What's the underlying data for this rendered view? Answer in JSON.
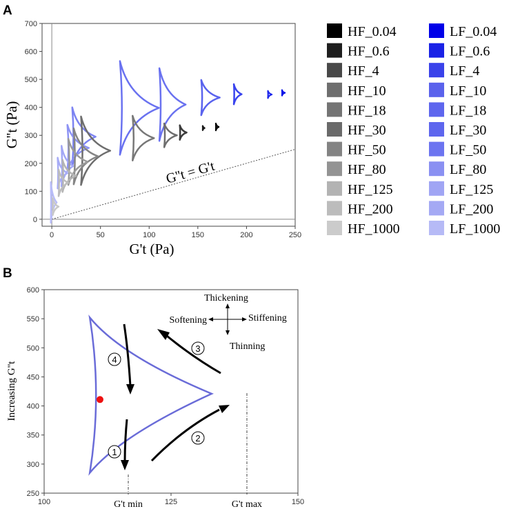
{
  "panel_a": {
    "label": "A",
    "chart_data": {
      "type": "scatter",
      "title": "",
      "xlabel": "G't (Pa)",
      "ylabel": "G''t (Pa)",
      "xlim": [
        -10,
        250
      ],
      "ylim": [
        -25,
        700
      ],
      "xticks": [
        0,
        50,
        100,
        150,
        200,
        250
      ],
      "yticks": [
        0,
        100,
        200,
        300,
        400,
        500,
        600,
        700
      ],
      "annotation": "G''t = G't",
      "identity_line": true,
      "series": [
        {
          "name": "LF_0.04",
          "color": "#0a14e8",
          "cx": 238,
          "cy": 452,
          "w": 3,
          "h": 20
        },
        {
          "name": "LF_0.6",
          "color": "#1e28ec",
          "cx": 224,
          "cy": 446,
          "w": 4,
          "h": 26
        },
        {
          "name": "LF_4",
          "color": "#3a44ee",
          "cx": 191,
          "cy": 447,
          "w": 8,
          "h": 72
        },
        {
          "name": "LF_10",
          "color": "#5a63ee",
          "cx": 163,
          "cy": 435,
          "w": 19,
          "h": 126
        },
        {
          "name": "LF_18",
          "color": "#6a72f0",
          "cx": 124,
          "cy": 410,
          "w": 27,
          "h": 260
        },
        {
          "name": "LF_30",
          "color": "#6a72f0",
          "cx": 90,
          "cy": 398,
          "w": 40,
          "h": 335
        },
        {
          "name": "LF_50",
          "color": "#7d84f2",
          "cx": 33,
          "cy": 295,
          "w": 24,
          "h": 210
        },
        {
          "name": "LF_80",
          "color": "#8d93f4",
          "cx": 27,
          "cy": 255,
          "w": 22,
          "h": 165
        },
        {
          "name": "LF_125",
          "color": "#a2a7f6",
          "cx": 16,
          "cy": 190,
          "w": 12,
          "h": 145
        },
        {
          "name": "LF_200",
          "color": "#a7acf6",
          "cx": 11,
          "cy": 165,
          "w": 10,
          "h": 110
        },
        {
          "name": "LF_1000",
          "color": "#b8bcf8",
          "cx": 2,
          "cy": 60,
          "w": 6,
          "h": 145
        },
        {
          "name": "HF_0.04",
          "color": "#000000",
          "cx": 170,
          "cy": 330,
          "w": 3,
          "h": 25
        },
        {
          "name": "HF_0.6",
          "color": "#1a1a1a",
          "cx": 156,
          "cy": 326,
          "w": 2,
          "h": 16
        },
        {
          "name": "HF_4",
          "color": "#3c3c3c",
          "cx": 135,
          "cy": 310,
          "w": 7,
          "h": 52
        },
        {
          "name": "HF_10",
          "color": "#6e6e6e",
          "cx": 122,
          "cy": 300,
          "w": 13,
          "h": 85
        },
        {
          "name": "HF_18",
          "color": "#787878",
          "cx": 94,
          "cy": 290,
          "w": 22,
          "h": 160
        },
        {
          "name": "HF_30",
          "color": "#6e6e6e",
          "cx": 45,
          "cy": 245,
          "w": 30,
          "h": 245
        },
        {
          "name": "HF_50",
          "color": "#858585",
          "cx": 35,
          "cy": 225,
          "w": 25,
          "h": 200
        },
        {
          "name": "HF_80",
          "color": "#9a9a9a",
          "cx": 27,
          "cy": 205,
          "w": 20,
          "h": 165
        },
        {
          "name": "HF_125",
          "color": "#b4b4b4",
          "cx": 18,
          "cy": 155,
          "w": 14,
          "h": 115
        },
        {
          "name": "HF_200",
          "color": "#bdbdbd",
          "cx": 12,
          "cy": 130,
          "w": 10,
          "h": 95
        },
        {
          "name": "HF_1000",
          "color": "#c8c8c8",
          "cx": 4,
          "cy": 45,
          "w": 6,
          "h": 60
        }
      ]
    },
    "legend": {
      "hf": [
        {
          "label": "HF_0.04",
          "color": "#000000"
        },
        {
          "label": "HF_0.6",
          "color": "#1e1e1e"
        },
        {
          "label": "HF_4",
          "color": "#484848"
        },
        {
          "label": "HF_10",
          "color": "#6e6e6e"
        },
        {
          "label": "HF_18",
          "color": "#747474"
        },
        {
          "label": "HF_30",
          "color": "#6a6a6a"
        },
        {
          "label": "HF_50",
          "color": "#838383"
        },
        {
          "label": "HF_80",
          "color": "#939393"
        },
        {
          "label": "HF_125",
          "color": "#b3b3b3"
        },
        {
          "label": "HF_200",
          "color": "#bcbcbc"
        },
        {
          "label": "HF_1000",
          "color": "#cbcbcb"
        }
      ],
      "lf": [
        {
          "label": "LF_0.04",
          "color": "#0000e8"
        },
        {
          "label": "LF_0.6",
          "color": "#1a22e6"
        },
        {
          "label": "LF_4",
          "color": "#3a42ea"
        },
        {
          "label": "LF_10",
          "color": "#5a62ec"
        },
        {
          "label": "LF_18",
          "color": "#5e66ee"
        },
        {
          "label": "LF_30",
          "color": "#5e66ee"
        },
        {
          "label": "LF_50",
          "color": "#6c74f0"
        },
        {
          "label": "LF_80",
          "color": "#8a90f2"
        },
        {
          "label": "LF_125",
          "color": "#a0a5f4"
        },
        {
          "label": "LF_200",
          "color": "#a4a9f4"
        },
        {
          "label": "LF_1000",
          "color": "#b6baf6"
        }
      ]
    }
  },
  "panel_b": {
    "label": "B",
    "chart_data": {
      "type": "line",
      "title": "",
      "xlabel": "",
      "ylabel": "Increasing G''t",
      "xlim": [
        100,
        150
      ],
      "ylim": [
        250,
        600
      ],
      "xticks": [
        100,
        125,
        150
      ],
      "yticks": [
        250,
        300,
        350,
        400,
        450,
        500,
        550,
        600
      ],
      "curve_color": "#6a6cd8",
      "vertices": {
        "top": {
          "x": 109,
          "y": 552
        },
        "right": {
          "x": 133,
          "y": 421
        },
        "bottom": {
          "x": 109,
          "y": 285
        }
      },
      "marker": {
        "x": 111,
        "y": 411,
        "color": "#ee1111"
      },
      "x_markers": [
        "G't min",
        "G't max"
      ],
      "directions": {
        "up": "Thickening",
        "left": "Softening",
        "right": "Stiffening",
        "down": "Thinning"
      },
      "step_labels": [
        "1",
        "2",
        "3",
        "4"
      ]
    }
  }
}
